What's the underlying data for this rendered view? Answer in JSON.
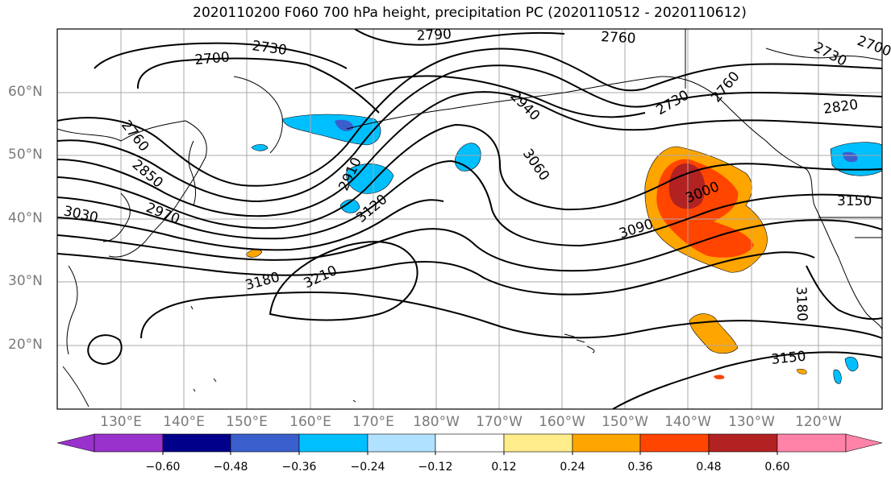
{
  "title": "2020110200 F060 700 hPa height, precipitation PC (2020110512 - 2020110612)",
  "lat_labels": [
    "60°N",
    "50°N",
    "40°N",
    "30°N",
    "20°N"
  ],
  "lon_labels": [
    "130°E",
    "140°E",
    "150°E",
    "160°E",
    "170°E",
    "180°W",
    "170°W",
    "160°W",
    "150°W",
    "140°W",
    "130°W",
    "120°W"
  ],
  "contour_labels": [
    "2700",
    "2730",
    "2790",
    "2760",
    "2700",
    "2730",
    "2760",
    "2820",
    "2730",
    "2940",
    "3060",
    "2760",
    "2850",
    "2970",
    "3030",
    "2910",
    "3120",
    "3000",
    "3090",
    "3150",
    "3180",
    "3210",
    "3180",
    "3150"
  ],
  "colorbar": {
    "ticks": [
      "−0.60",
      "−0.48",
      "−0.36",
      "−0.24",
      "−0.12",
      "0.12",
      "0.24",
      "0.36",
      "0.48",
      "0.60"
    ],
    "colors": [
      "#9932cc",
      "#00008b",
      "#3a5fcd",
      "#00bfff",
      "#b0e2ff",
      "#ffffff",
      "#ffec8b",
      "#ffa500",
      "#ff4500",
      "#b22222",
      "#ff83a8"
    ]
  }
}
